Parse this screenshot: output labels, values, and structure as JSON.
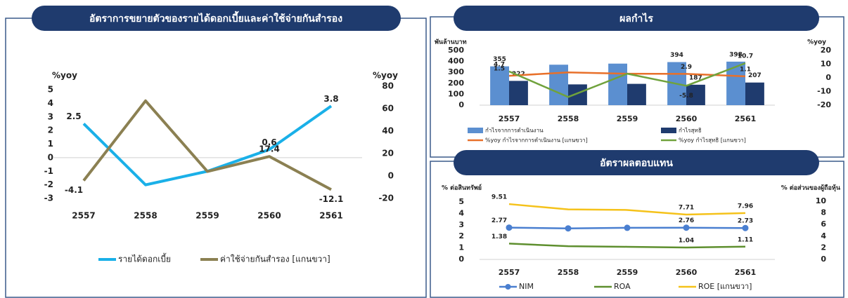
{
  "chart_data": [
    {
      "type": "line",
      "title": "อัตราการขยายตัวของรายได้ดอกเบี้ยและค่าใช้จ่ายกันสำรอง",
      "categories": [
        "2557",
        "2558",
        "2559",
        "2560",
        "2561"
      ],
      "ylabel": "%yoy",
      "y2label": "%yoy",
      "ylim": [
        -3,
        5
      ],
      "yticks": [
        -3,
        -2,
        -1,
        0,
        1,
        2,
        3,
        4,
        5
      ],
      "y2lim": [
        -20,
        80
      ],
      "y2ticks": [
        -20,
        0,
        20,
        40,
        60,
        80
      ],
      "series": [
        {
          "name": "รายได้ดอกเบี้ย",
          "color": "#1ab0e8",
          "values": [
            2.5,
            -2.0,
            -1.0,
            0.6,
            3.8
          ],
          "value_labels": [
            "2.5",
            null,
            null,
            "0.6",
            "3.8"
          ]
        },
        {
          "name": "ค่าใช้จ่ายกันสำรอง [แกนขวา]",
          "color": "#8b8052",
          "axis": "y2",
          "values": [
            -4.1,
            67,
            4,
            17.4,
            -12.1
          ],
          "value_labels": [
            "-4.1",
            null,
            null,
            "17.4",
            "-12.1"
          ]
        }
      ]
    },
    {
      "type": "bar",
      "title": "ผลกำไร",
      "categories": [
        "2557",
        "2558",
        "2559",
        "2560",
        "2561"
      ],
      "ylabel": "พันล้านบาท",
      "y2label": "%yoy",
      "ylim": [
        0,
        500
      ],
      "yticks": [
        0,
        100,
        200,
        300,
        400,
        500
      ],
      "y2lim": [
        -20,
        20
      ],
      "y2ticks": [
        -20,
        -10,
        0,
        10,
        20
      ],
      "series": [
        {
          "name": "กำไรจากการดำเนินงาน",
          "type": "bar",
          "color": "#5b8fd0",
          "values": [
            355,
            370,
            380,
            394,
            398
          ],
          "value_labels": [
            "355",
            null,
            null,
            "394",
            "398"
          ]
        },
        {
          "name": "กำไรสุทธิ",
          "type": "bar",
          "color": "#1f3b6e",
          "values": [
            222,
            190,
            195,
            187,
            207
          ],
          "value_labels": [
            "222",
            null,
            null,
            "187",
            "207"
          ]
        },
        {
          "name": "%yoy กำไรจากการดำเนินงาน [แกนขวา]",
          "type": "line",
          "axis": "y2",
          "color": "#e8702a",
          "values": [
            1.5,
            4,
            3,
            2.9,
            1.1
          ],
          "value_labels": [
            "1.5",
            null,
            null,
            "2.9",
            "1.1"
          ]
        },
        {
          "name": "%yoy กำไรสุทธิ [แกนขวา]",
          "type": "line",
          "axis": "y2",
          "color": "#70a23c",
          "values": [
            4.7,
            -14,
            3,
            -5.8,
            10.7
          ],
          "value_labels": [
            "4.7",
            null,
            null,
            "-5.8",
            "10.7"
          ]
        }
      ]
    },
    {
      "type": "line",
      "title": "อัตราผลตอบแทน",
      "categories": [
        "2557",
        "2558",
        "2559",
        "2560",
        "2561"
      ],
      "ylabel": "% ต่อสินทรัพย์",
      "y2label": "% ต่อส่วนของผู้ถือหุ้น",
      "ylim": [
        0,
        5
      ],
      "yticks": [
        0,
        1,
        2,
        3,
        4,
        5
      ],
      "y2lim": [
        0,
        10
      ],
      "y2ticks": [
        0,
        2,
        4,
        6,
        8,
        10
      ],
      "series": [
        {
          "name": "NIM",
          "color": "#4a7fd0",
          "marker": true,
          "values": [
            2.77,
            2.7,
            2.75,
            2.76,
            2.73
          ],
          "value_labels": [
            "2.77",
            null,
            null,
            "2.76",
            "2.73"
          ]
        },
        {
          "name": "ROA",
          "color": "#5e8f2e",
          "values": [
            1.38,
            1.15,
            1.1,
            1.04,
            1.11
          ],
          "value_labels": [
            "1.38",
            null,
            null,
            "1.04",
            "1.11"
          ]
        },
        {
          "name": "ROE [แกนขวา]",
          "color": "#f5c21a",
          "axis": "y2",
          "values": [
            9.51,
            8.6,
            8.5,
            7.71,
            7.96
          ],
          "value_labels": [
            "9.51",
            null,
            null,
            "7.71",
            "7.96"
          ]
        }
      ]
    }
  ]
}
